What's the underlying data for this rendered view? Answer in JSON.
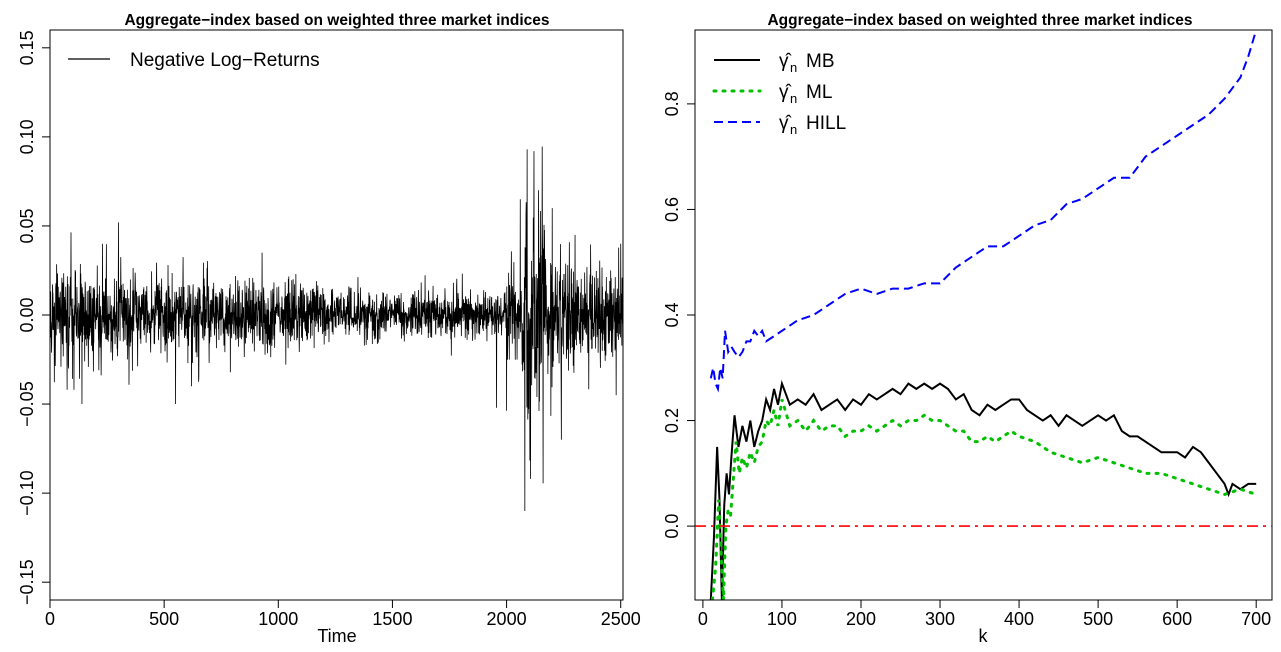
{
  "chart_data": [
    {
      "type": "line",
      "title": "Aggregate−index based on weighted three market indices",
      "xlabel": "Time",
      "ylabel": "",
      "xlim": [
        0,
        2510
      ],
      "ylim": [
        -0.16,
        0.16
      ],
      "xticks": [
        0,
        500,
        1000,
        1500,
        2000,
        2500
      ],
      "yticks": [
        "−0.15",
        "−0.10",
        "−0.05",
        "0.00",
        "0.05",
        "0.10",
        "0.15"
      ],
      "ytick_values": [
        -0.15,
        -0.1,
        -0.05,
        0.0,
        0.05,
        0.1,
        0.15
      ],
      "grid": false,
      "legend_position": "top-left",
      "series": [
        {
          "name": "Negative Log−Returns",
          "color": "#000000",
          "n_points": 2510,
          "volatility_profile": [
            {
              "x": [
                0,
                400
              ],
              "sd": 0.012
            },
            {
              "x": [
                400,
                700
              ],
              "sd": 0.01
            },
            {
              "x": [
                700,
                1200
              ],
              "sd": 0.009
            },
            {
              "x": [
                1200,
                1600
              ],
              "sd": 0.006
            },
            {
              "x": [
                1600,
                2000
              ],
              "sd": 0.007
            },
            {
              "x": [
                2000,
                2070
              ],
              "sd": 0.013
            },
            {
              "x": [
                2070,
                2170
              ],
              "sd": 0.03
            },
            {
              "x": [
                2170,
                2300
              ],
              "sd": 0.017
            },
            {
              "x": [
                2300,
                2510
              ],
              "sd": 0.013
            }
          ],
          "extremes": [
            {
              "x": 105,
              "y": -0.042
            },
            {
              "x": 140,
              "y": -0.05
            },
            {
              "x": 230,
              "y": 0.04
            },
            {
              "x": 300,
              "y": 0.052
            },
            {
              "x": 550,
              "y": -0.05
            },
            {
              "x": 620,
              "y": -0.04
            },
            {
              "x": 2060,
              "y": 0.065
            },
            {
              "x": 2080,
              "y": -0.11
            },
            {
              "x": 2090,
              "y": 0.093
            },
            {
              "x": 2105,
              "y": -0.092
            },
            {
              "x": 2120,
              "y": 0.092
            },
            {
              "x": 2140,
              "y": 0.07
            },
            {
              "x": 2200,
              "y": 0.06
            },
            {
              "x": 2240,
              "y": -0.07
            },
            {
              "x": 2300,
              "y": 0.045
            },
            {
              "x": 2480,
              "y": -0.045
            },
            {
              "x": 2500,
              "y": 0.04
            }
          ]
        }
      ]
    },
    {
      "type": "line",
      "title": "Aggregate−index based on weighted three market indices",
      "xlabel": "k",
      "ylabel": "",
      "xlim": [
        -10,
        720
      ],
      "ylim": [
        -0.14,
        0.94
      ],
      "xticks": [
        0,
        100,
        200,
        300,
        400,
        500,
        600,
        700
      ],
      "yticks": [
        "0.0",
        "0.2",
        "0.4",
        "0.6",
        "0.8"
      ],
      "ytick_values": [
        0.0,
        0.2,
        0.4,
        0.6,
        0.8
      ],
      "grid": false,
      "legend_position": "top-left",
      "series": [
        {
          "name": "MB",
          "legend_symbol": "γ̂",
          "legend_subscript": "n",
          "color": "#000000",
          "style": "solid",
          "x": [
            10,
            14,
            18,
            21,
            24,
            27,
            30,
            33,
            36,
            40,
            45,
            50,
            55,
            60,
            65,
            70,
            75,
            80,
            85,
            90,
            95,
            100,
            110,
            120,
            130,
            140,
            150,
            160,
            170,
            180,
            190,
            200,
            210,
            220,
            230,
            240,
            250,
            260,
            270,
            280,
            290,
            300,
            310,
            320,
            330,
            340,
            350,
            360,
            370,
            380,
            390,
            400,
            410,
            420,
            430,
            440,
            450,
            460,
            470,
            480,
            490,
            500,
            510,
            520,
            530,
            540,
            550,
            560,
            570,
            580,
            590,
            600,
            610,
            620,
            630,
            640,
            650,
            660,
            665,
            670,
            680,
            690,
            700
          ],
          "y": [
            -0.14,
            -0.02,
            0.15,
            0.05,
            -0.14,
            0.04,
            0.1,
            0.06,
            0.13,
            0.21,
            0.15,
            0.19,
            0.16,
            0.2,
            0.15,
            0.18,
            0.2,
            0.24,
            0.22,
            0.26,
            0.23,
            0.27,
            0.23,
            0.24,
            0.23,
            0.25,
            0.22,
            0.23,
            0.24,
            0.22,
            0.24,
            0.23,
            0.25,
            0.24,
            0.25,
            0.26,
            0.25,
            0.27,
            0.26,
            0.27,
            0.26,
            0.27,
            0.26,
            0.24,
            0.25,
            0.22,
            0.21,
            0.23,
            0.22,
            0.23,
            0.24,
            0.24,
            0.22,
            0.21,
            0.2,
            0.21,
            0.19,
            0.21,
            0.2,
            0.19,
            0.2,
            0.21,
            0.2,
            0.21,
            0.18,
            0.17,
            0.17,
            0.16,
            0.15,
            0.14,
            0.14,
            0.14,
            0.13,
            0.15,
            0.14,
            0.12,
            0.1,
            0.08,
            0.06,
            0.08,
            0.07,
            0.08,
            0.08
          ]
        },
        {
          "name": "ML",
          "legend_symbol": "γ̂",
          "legend_subscript": "n",
          "color": "#00c000",
          "style": "dotted",
          "x": [
            12,
            16,
            20,
            23,
            26,
            29,
            32,
            35,
            38,
            42,
            46,
            50,
            55,
            60,
            65,
            70,
            75,
            80,
            85,
            90,
            95,
            100,
            110,
            120,
            130,
            140,
            150,
            160,
            170,
            180,
            190,
            200,
            210,
            220,
            230,
            240,
            250,
            260,
            270,
            280,
            290,
            300,
            310,
            320,
            330,
            340,
            350,
            360,
            370,
            380,
            390,
            400,
            420,
            440,
            460,
            480,
            500,
            520,
            540,
            560,
            580,
            600,
            620,
            640,
            660,
            680,
            700
          ],
          "y": [
            -0.14,
            -0.08,
            0.05,
            -0.05,
            -0.14,
            0.0,
            0.03,
            0.02,
            0.08,
            0.16,
            0.1,
            0.13,
            0.11,
            0.14,
            0.12,
            0.15,
            0.16,
            0.2,
            0.19,
            0.22,
            0.19,
            0.24,
            0.19,
            0.2,
            0.18,
            0.2,
            0.18,
            0.19,
            0.19,
            0.17,
            0.18,
            0.18,
            0.19,
            0.18,
            0.19,
            0.2,
            0.19,
            0.2,
            0.2,
            0.21,
            0.2,
            0.2,
            0.19,
            0.18,
            0.18,
            0.16,
            0.16,
            0.17,
            0.16,
            0.17,
            0.18,
            0.17,
            0.16,
            0.14,
            0.13,
            0.12,
            0.13,
            0.12,
            0.11,
            0.1,
            0.1,
            0.09,
            0.08,
            0.07,
            0.06,
            0.07,
            0.06
          ]
        },
        {
          "name": "HILL",
          "legend_symbol": "γ̂",
          "legend_subscript": "n",
          "color": "#0000ff",
          "style": "dashed",
          "x": [
            10,
            13,
            16,
            19,
            22,
            25,
            28,
            32,
            36,
            40,
            45,
            50,
            55,
            60,
            65,
            70,
            75,
            80,
            90,
            100,
            110,
            120,
            140,
            160,
            180,
            200,
            220,
            240,
            260,
            280,
            300,
            320,
            340,
            360,
            380,
            400,
            420,
            440,
            460,
            480,
            500,
            520,
            540,
            560,
            580,
            600,
            620,
            640,
            660,
            680,
            690,
            700
          ],
          "y": [
            0.28,
            0.3,
            0.27,
            0.26,
            0.3,
            0.28,
            0.37,
            0.33,
            0.34,
            0.33,
            0.32,
            0.33,
            0.35,
            0.35,
            0.37,
            0.36,
            0.37,
            0.35,
            0.36,
            0.37,
            0.38,
            0.39,
            0.4,
            0.42,
            0.44,
            0.45,
            0.44,
            0.45,
            0.45,
            0.46,
            0.46,
            0.49,
            0.51,
            0.53,
            0.53,
            0.55,
            0.57,
            0.58,
            0.61,
            0.62,
            0.64,
            0.66,
            0.66,
            0.7,
            0.72,
            0.74,
            0.76,
            0.78,
            0.81,
            0.85,
            0.89,
            0.94
          ]
        },
        {
          "name": "",
          "color": "#ff0000",
          "style": "dashdot",
          "hline": 0.0
        }
      ]
    }
  ]
}
